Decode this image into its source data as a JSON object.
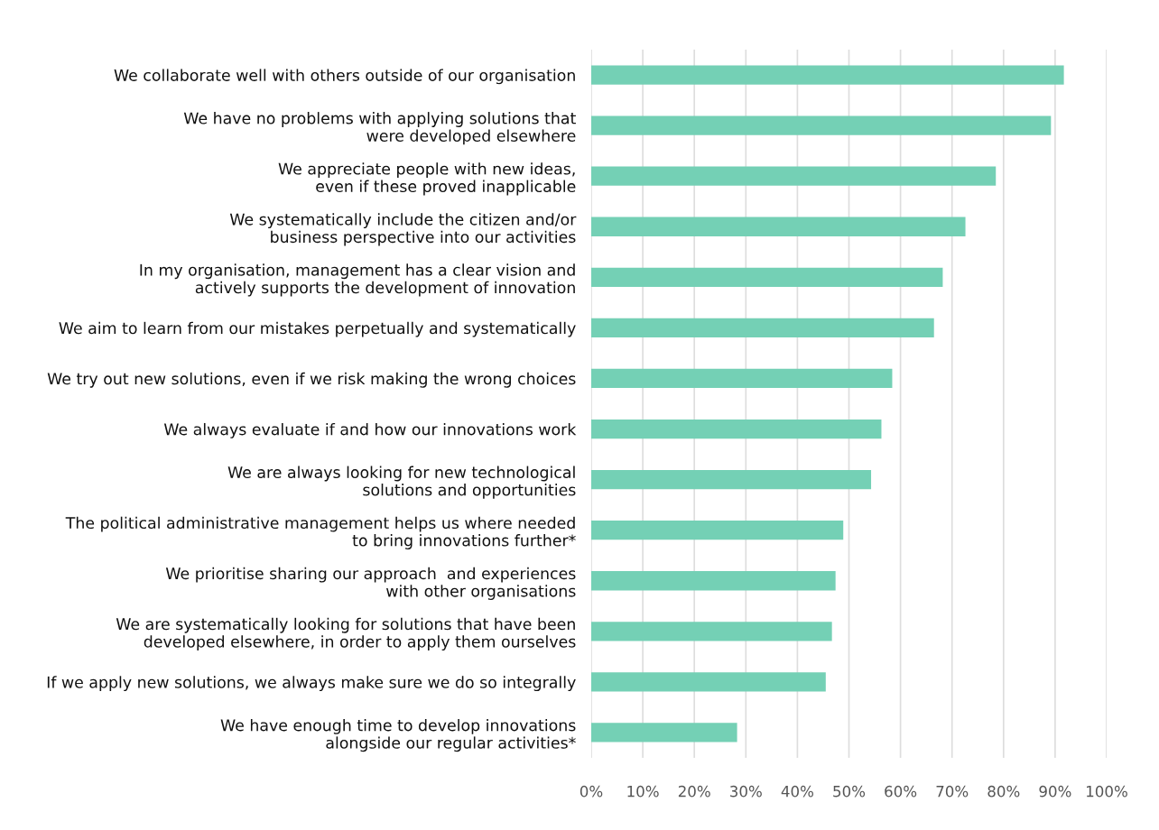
{
  "chart_data": {
    "type": "bar",
    "orientation": "horizontal",
    "categories": [
      "We collaborate well with others outside of our organisation",
      "We have no problems with applying solutions that\nwere developed elsewhere",
      "We appreciate people with new ideas,\neven if these proved inapplicable",
      "We systematically include the citizen and/or\nbusiness perspective into our activities",
      "In my organisation, management has a clear vision and\nactively supports the development of innovation",
      "We aim to learn from our mistakes perpetually and systematically",
      "We try out new solutions, even if we risk making the wrong choices",
      "We always evaluate if and how our innovations work",
      "We are always looking for new technological\nsolutions and opportunities",
      "The political administrative management helps us where needed\nto bring innovations further*",
      "We prioritise sharing our approach  and experiences\nwith other organisations",
      "We are systematically looking for solutions that have been\ndeveloped elsewhere, in order to apply them ourselves",
      "If we apply new solutions, we always make sure we do so integrally",
      "We have enough time to develop innovations\nalongside our regular activities*"
    ],
    "values": [
      91.7,
      89.2,
      78.5,
      72.6,
      68.2,
      66.5,
      58.4,
      56.3,
      54.3,
      48.9,
      47.4,
      46.7,
      45.5,
      28.3
    ],
    "color": "#74d0b5",
    "xlim": [
      0,
      100
    ],
    "xticks": [
      {
        "value": 0,
        "label": "0%"
      },
      {
        "value": 10,
        "label": "10%"
      },
      {
        "value": 20,
        "label": "20%"
      },
      {
        "value": 30,
        "label": "30%"
      },
      {
        "value": 40,
        "label": "40%"
      },
      {
        "value": 50,
        "label": "50%"
      },
      {
        "value": 60,
        "label": "60%"
      },
      {
        "value": 70,
        "label": "70%"
      },
      {
        "value": 80,
        "label": "80%"
      },
      {
        "value": 90,
        "label": "90%"
      },
      {
        "value": 100,
        "label": "100%"
      }
    ],
    "grid": "x"
  }
}
